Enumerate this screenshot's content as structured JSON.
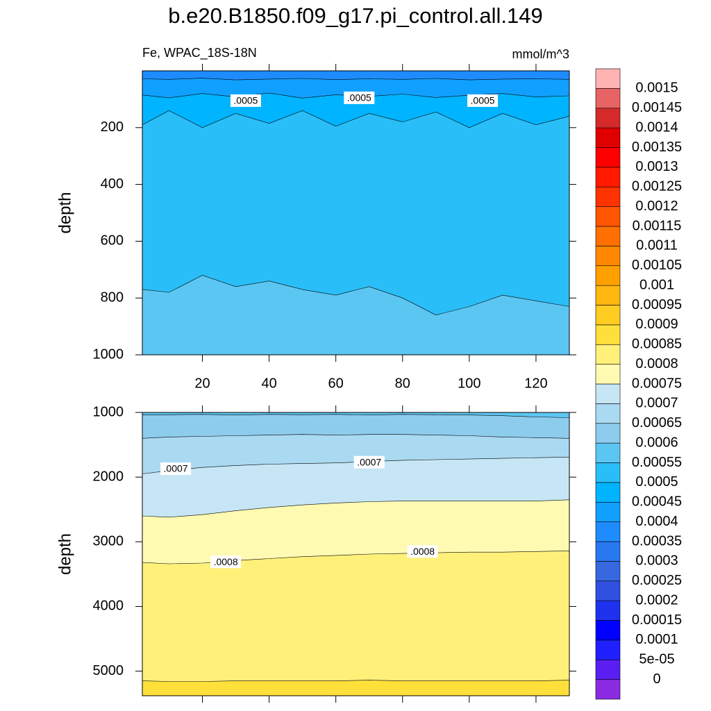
{
  "chart_data": {
    "type": "contour",
    "title": "b.e20.B1850.f09_g17.pi_control.all.149",
    "left_label": "Fe, WPAC_18S-18N",
    "right_label": "mmol/m^3",
    "x": [
      2,
      10,
      20,
      30,
      40,
      50,
      60,
      70,
      80,
      90,
      100,
      110,
      120,
      130
    ],
    "panels": [
      {
        "ylabel": "depth",
        "xlim": [
          2,
          130
        ],
        "ylim": [
          0,
          1000
        ],
        "y_reversed": true,
        "xticks": [
          20,
          40,
          60,
          80,
          100,
          120
        ],
        "xtick_labels": true,
        "yticks": [
          200,
          400,
          600,
          800,
          1000
        ],
        "contours": [
          {
            "level": 0.0004,
            "depth": [
              28,
              30,
              26,
              32,
              29,
              27,
              31,
              28,
              30,
              27,
              32,
              29,
              28,
              30
            ]
          },
          {
            "level": 0.00045,
            "depth": [
              85,
              95,
              80,
              92,
              78,
              96,
              84,
              90,
              82,
              94,
              86,
              80,
              92,
              88
            ]
          },
          {
            "level": 0.0005,
            "depth": [
              190,
              140,
              200,
              150,
              185,
              140,
              195,
              150,
              180,
              145,
              200,
              150,
              190,
              160
            ]
          },
          {
            "level": 0.00055,
            "depth": [
              770,
              780,
              720,
              760,
              740,
              770,
              790,
              760,
              800,
              860,
              830,
              790,
              810,
              830
            ]
          }
        ],
        "contour_labels": [
          {
            "value": 0.0005,
            "label": ".0005",
            "x": 33,
            "y": 105
          },
          {
            "value": 0.0005,
            "label": ".0005",
            "x": 67,
            "y": 95
          },
          {
            "value": 0.0005,
            "label": ".0005",
            "x": 104,
            "y": 105
          }
        ]
      },
      {
        "ylabel": "depth",
        "xlim": [
          2,
          130
        ],
        "ylim": [
          1000,
          5380
        ],
        "y_reversed": true,
        "xticks": [
          20,
          40,
          60,
          80,
          100,
          120
        ],
        "xtick_labels": false,
        "yticks": [
          1000,
          2000,
          3000,
          4000,
          5000
        ],
        "contours": [
          {
            "level": 0.0006,
            "depth": [
              1040,
              1035,
              1030,
              1040,
              1030,
              1035,
              1030,
              1040,
              1030,
              1035,
              1040,
              1050,
              1070,
              1080
            ]
          },
          {
            "level": 0.00065,
            "depth": [
              1400,
              1380,
              1370,
              1360,
              1350,
              1340,
              1350,
              1340,
              1340,
              1350,
              1360,
              1380,
              1390,
              1400
            ]
          },
          {
            "level": 0.0007,
            "depth": [
              1950,
              1900,
              1850,
              1820,
              1800,
              1790,
              1780,
              1760,
              1740,
              1730,
              1720,
              1710,
              1700,
              1690
            ]
          },
          {
            "level": 0.00075,
            "depth": [
              2600,
              2620,
              2580,
              2520,
              2470,
              2430,
              2400,
              2380,
              2370,
              2370,
              2370,
              2370,
              2370,
              2350
            ]
          },
          {
            "level": 0.0008,
            "depth": [
              3320,
              3340,
              3330,
              3290,
              3260,
              3230,
              3210,
              3190,
              3180,
              3170,
              3160,
              3160,
              3150,
              3140
            ]
          },
          {
            "level": 0.00085,
            "depth": [
              5150,
              5160,
              5160,
              5150,
              5150,
              5150,
              5150,
              5140,
              5150,
              5150,
              5150,
              5150,
              5150,
              5140
            ]
          }
        ],
        "contour_labels": [
          {
            "value": 0.0007,
            "label": ".0007",
            "x": 12,
            "y": 1870
          },
          {
            "value": 0.0007,
            "label": ".0007",
            "x": 70,
            "y": 1770
          },
          {
            "value": 0.0008,
            "label": ".0008",
            "x": 27,
            "y": 3310
          },
          {
            "value": 0.0008,
            "label": ".0008",
            "x": 86,
            "y": 3150
          }
        ]
      }
    ],
    "colorbar": {
      "levels": [
        0,
        {
          "value": 5e-05,
          "label": "5e-05"
        },
        0.0001,
        0.00015,
        0.0002,
        0.00025,
        0.0003,
        0.00035,
        0.0004,
        0.00045,
        0.0005,
        0.00055,
        0.0006,
        0.00065,
        0.0007,
        0.00075,
        0.0008,
        0.00085,
        0.0009,
        0.00095,
        0.001,
        0.00105,
        0.0011,
        0.00115,
        0.0012,
        0.00125,
        0.0013,
        0.00135,
        0.0014,
        0.00145,
        0.0015
      ],
      "colors": [
        "#8a2be2",
        "#5a1ef0",
        "#2020ff",
        "#0000ff",
        "#1e32ee",
        "#3050e0",
        "#3868e0",
        "#2878f0",
        "#1e8cff",
        "#10a0ff",
        "#00b4ff",
        "#2abef8",
        "#5cc6f2",
        "#8eccee",
        "#aadaf1",
        "#c6e6f5",
        "#fffab2",
        "#fff07a",
        "#ffe03a",
        "#ffcc22",
        "#ffb810",
        "#ffa000",
        "#ff8800",
        "#ff7000",
        "#ff5500",
        "#ff3300",
        "#ff1a00",
        "#ff0000",
        "#e00000",
        "#d42a2a",
        "#e86464",
        "#ffb3b3"
      ]
    }
  }
}
